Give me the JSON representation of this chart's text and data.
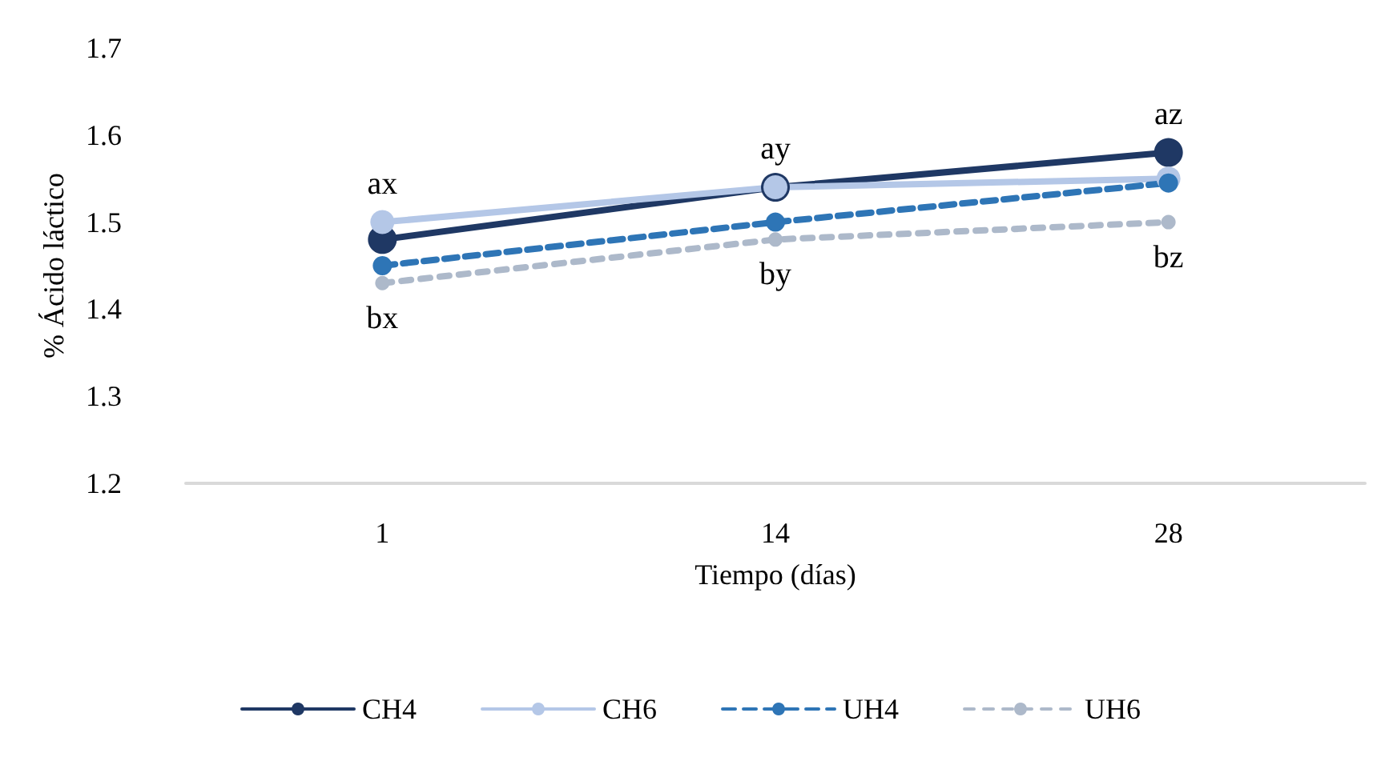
{
  "chart_data": {
    "type": "line",
    "xlabel": "Tiempo (días)",
    "ylabel": "% Ácido láctico",
    "categories": [
      "1",
      "14",
      "28"
    ],
    "series": [
      {
        "name": "CH4",
        "color": "#1f3864",
        "values": [
          1.48,
          1.54,
          1.58
        ],
        "line_style": "solid"
      },
      {
        "name": "CH6",
        "color": "#b4c7e7",
        "values": [
          1.5,
          1.54,
          1.55
        ],
        "line_style": "solid"
      },
      {
        "name": "UH4",
        "color": "#2e75b6",
        "values": [
          1.45,
          1.5,
          1.545
        ],
        "line_style": "dashed"
      },
      {
        "name": "UH6",
        "color": "#adb9ca",
        "values": [
          1.43,
          1.48,
          1.5
        ],
        "line_style": "dashed"
      }
    ],
    "ylim": [
      1.2,
      1.7
    ],
    "yticks": [
      1.2,
      1.3,
      1.4,
      1.5,
      1.6,
      1.7
    ],
    "grid": false,
    "legend": "bottom",
    "marker": "circle",
    "annotations": [
      "ax",
      "bx",
      "ay",
      "by",
      "az",
      "bz"
    ]
  }
}
